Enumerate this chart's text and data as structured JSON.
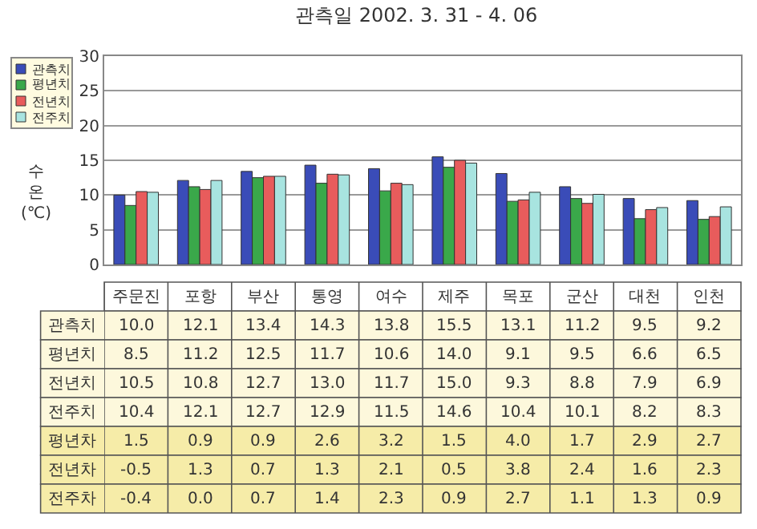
{
  "chart_data": {
    "type": "bar",
    "title": "관측일 2002. 3. 31 - 4. 06",
    "ylabel": "수온 (℃)",
    "categories": [
      "주문진",
      "포항",
      "부산",
      "통영",
      "여수",
      "제주",
      "목포",
      "군산",
      "대천",
      "인천"
    ],
    "series": [
      {
        "name": "관측치",
        "color": "#3a4cb8",
        "values": [
          10.0,
          12.1,
          13.4,
          14.3,
          13.8,
          15.5,
          13.1,
          11.2,
          9.5,
          9.2
        ],
        "value_labels": [
          "10.0",
          "12.1",
          "13.4",
          "14.3",
          "13.8",
          "15.5",
          "13.1",
          "11.2",
          "9.5",
          "9.2"
        ]
      },
      {
        "name": "평년치",
        "color": "#3aa84a",
        "values": [
          8.5,
          11.2,
          12.5,
          11.7,
          10.6,
          14.0,
          9.1,
          9.5,
          6.6,
          6.5
        ],
        "value_labels": [
          "8.5",
          "11.2",
          "12.5",
          "11.7",
          "10.6",
          "14.0",
          "9.1",
          "9.5",
          "6.6",
          "6.5"
        ]
      },
      {
        "name": "전년치",
        "color": "#e85c5c",
        "values": [
          10.5,
          10.8,
          12.7,
          13.0,
          11.7,
          15.0,
          9.3,
          8.8,
          7.9,
          6.9
        ],
        "value_labels": [
          "10.5",
          "10.8",
          "12.7",
          "13.0",
          "11.7",
          "15.0",
          "9.3",
          "8.8",
          "7.9",
          "6.9"
        ]
      },
      {
        "name": "전주치",
        "color": "#a8e4e0",
        "values": [
          10.4,
          12.1,
          12.7,
          12.9,
          11.5,
          14.6,
          10.4,
          10.1,
          8.2,
          8.3
        ],
        "value_labels": [
          "10.4",
          "12.1",
          "12.7",
          "12.9",
          "11.5",
          "14.6",
          "10.4",
          "10.1",
          "8.2",
          "8.3"
        ]
      }
    ],
    "ylim": [
      0,
      30
    ],
    "yticks": [
      0,
      5,
      10,
      15,
      20,
      25,
      30
    ],
    "grid": "y",
    "legend": "top left",
    "annotations": [
      "평년차 1.5 0.9 0.9 2.6 3.2 1.5 4.0 1.7 2.9 2.7",
      "전년차 -0.5 1.3 0.7 1.3 2.1 0.5 3.8 2.4 1.6 2.3",
      "전주차 -0.4 0.0 0.7 1.4 2.3 0.9 2.7 1.1 1.3 0.9"
    ]
  }
}
